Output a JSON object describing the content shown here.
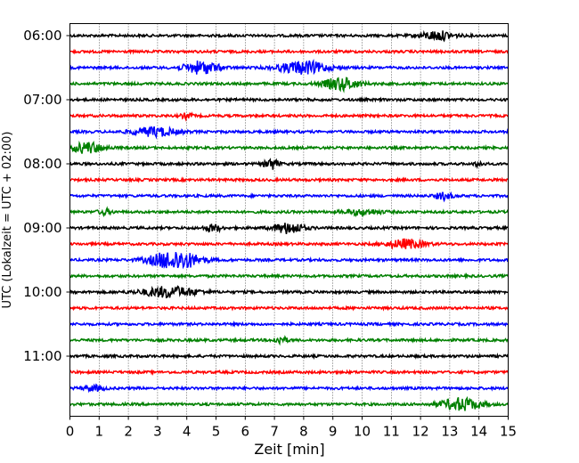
{
  "chart_data": {
    "type": "helicorder",
    "xlabel": "Zeit  [min]",
    "ylabel": "UTC (Lokalzeit = UTC + 02:00)",
    "x_ticks": [
      "0",
      "1",
      "2",
      "3",
      "4",
      "5",
      "6",
      "7",
      "8",
      "9",
      "10",
      "11",
      "12",
      "13",
      "14",
      "15"
    ],
    "xlim": [
      0,
      15
    ],
    "y_ticks": [
      "06:00",
      "07:00",
      "08:00",
      "09:00",
      "10:00",
      "11:00"
    ],
    "grid_x": true,
    "grid_style": "dotted",
    "line_interval_minutes": 15,
    "trace_colors": [
      "#000000",
      "#ff0000",
      "#0000ff",
      "#008000"
    ],
    "traces": [
      {
        "start": "06:00",
        "events": [
          {
            "t": 12.6,
            "amp": 5,
            "dur": 1.2
          }
        ]
      },
      {
        "start": "06:15",
        "events": []
      },
      {
        "start": "06:30",
        "events": [
          {
            "t": 4.5,
            "amp": 7,
            "dur": 1.3
          },
          {
            "t": 8.0,
            "amp": 7,
            "dur": 1.8
          }
        ]
      },
      {
        "start": "06:45",
        "events": [
          {
            "t": 9.3,
            "amp": 7,
            "dur": 1.3
          }
        ]
      },
      {
        "start": "07:00",
        "events": []
      },
      {
        "start": "07:15",
        "events": [
          {
            "t": 4.0,
            "amp": 3,
            "dur": 0.4
          }
        ]
      },
      {
        "start": "07:30",
        "events": [
          {
            "t": 2.9,
            "amp": 5,
            "dur": 1.6
          }
        ]
      },
      {
        "start": "07:45",
        "events": [
          {
            "t": 0.6,
            "amp": 6,
            "dur": 1.2
          }
        ]
      },
      {
        "start": "08:00",
        "events": [
          {
            "t": 6.9,
            "amp": 6,
            "dur": 0.5
          },
          {
            "t": 14.0,
            "amp": 3,
            "dur": 0.3
          }
        ]
      },
      {
        "start": "08:15",
        "events": []
      },
      {
        "start": "08:30",
        "events": [
          {
            "t": 12.8,
            "amp": 4,
            "dur": 0.6
          }
        ]
      },
      {
        "start": "08:45",
        "events": [
          {
            "t": 1.2,
            "amp": 3,
            "dur": 0.5
          },
          {
            "t": 10.0,
            "amp": 3,
            "dur": 1.4
          }
        ]
      },
      {
        "start": "09:00",
        "events": [
          {
            "t": 4.9,
            "amp": 4,
            "dur": 0.6
          },
          {
            "t": 7.5,
            "amp": 6,
            "dur": 1.1
          }
        ]
      },
      {
        "start": "09:15",
        "events": [
          {
            "t": 11.5,
            "amp": 5,
            "dur": 1.4
          }
        ]
      },
      {
        "start": "09:30",
        "events": [
          {
            "t": 3.6,
            "amp": 11,
            "dur": 1.8
          }
        ]
      },
      {
        "start": "09:45",
        "events": []
      },
      {
        "start": "10:00",
        "events": [
          {
            "t": 3.4,
            "amp": 6,
            "dur": 2.0
          }
        ]
      },
      {
        "start": "10:15",
        "events": []
      },
      {
        "start": "10:30",
        "events": []
      },
      {
        "start": "10:45",
        "events": [
          {
            "t": 7.2,
            "amp": 4,
            "dur": 0.5
          }
        ]
      },
      {
        "start": "11:00",
        "events": []
      },
      {
        "start": "11:15",
        "events": []
      },
      {
        "start": "11:30",
        "events": [
          {
            "t": 0.8,
            "amp": 3,
            "dur": 0.8
          }
        ]
      },
      {
        "start": "11:45",
        "events": [
          {
            "t": 13.4,
            "amp": 7,
            "dur": 1.5
          }
        ]
      }
    ]
  }
}
